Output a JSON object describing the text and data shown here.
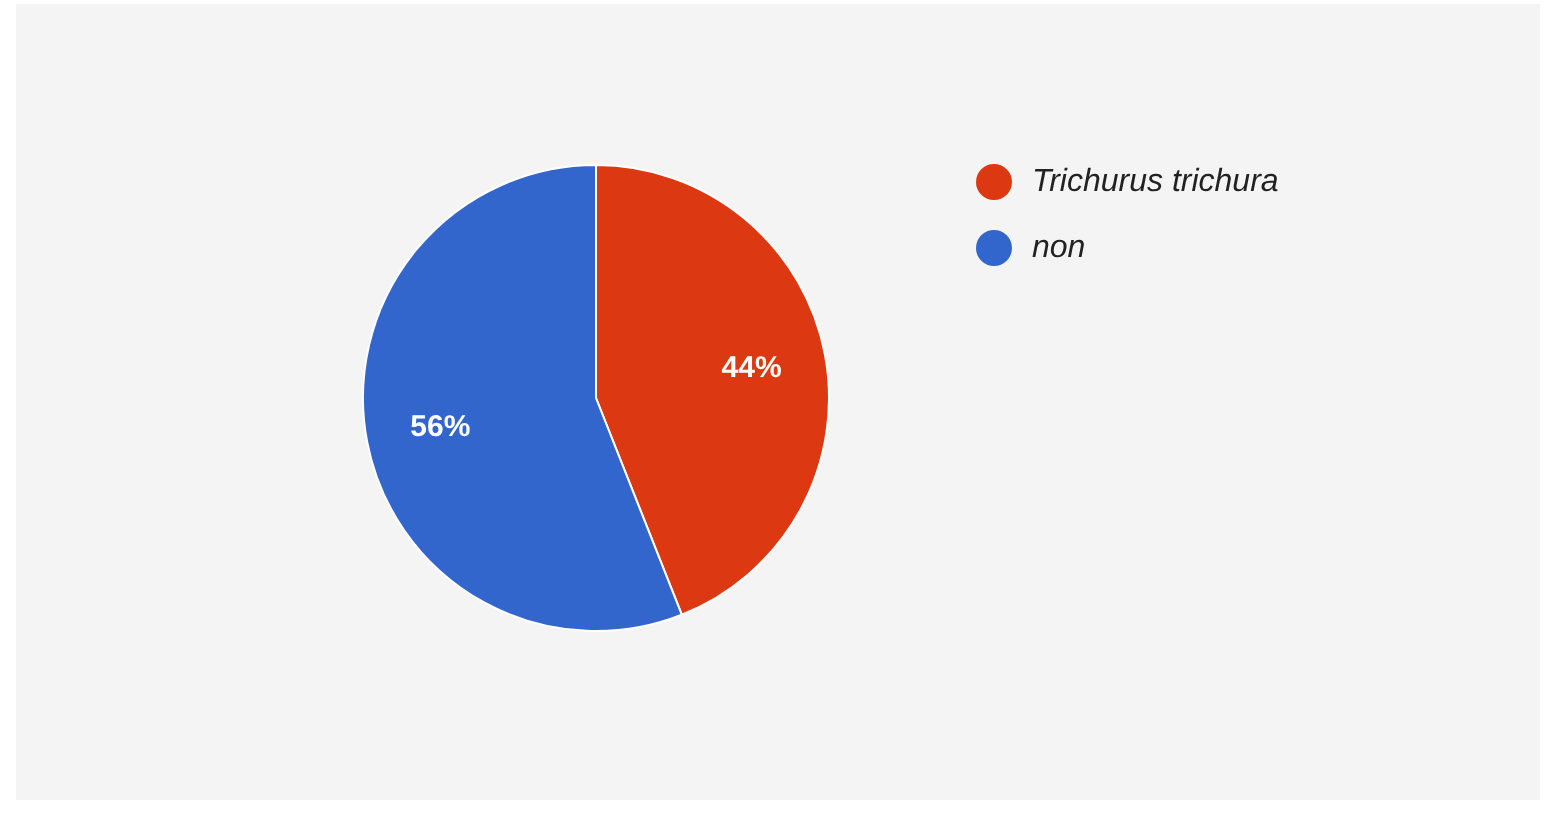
{
  "chart_data": {
    "type": "pie",
    "categories": [
      "Trichurus trichura",
      "non"
    ],
    "values": [
      44,
      56
    ],
    "colors": [
      "#dc3912",
      "#3366cc"
    ],
    "value_labels": [
      "44%",
      "56%"
    ],
    "legend": "top right"
  }
}
